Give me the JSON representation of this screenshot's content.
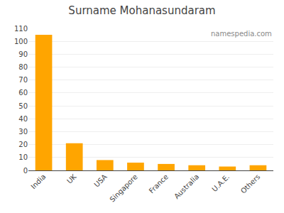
{
  "chart_data": {
    "type": "bar",
    "title": "Surname Mohanasundaram",
    "categories": [
      "India",
      "UK",
      "USA",
      "Singapore",
      "France",
      "Australia",
      "U.A.E.",
      "Others"
    ],
    "values": [
      105,
      21,
      8,
      6,
      5,
      4,
      3,
      4
    ],
    "color": "#FFA500",
    "ylim": [
      0,
      110
    ],
    "yticks": [
      0,
      10,
      20,
      30,
      40,
      50,
      60,
      70,
      80,
      90,
      100,
      110
    ],
    "grid": true,
    "annotations": [
      "namespedia.com"
    ]
  }
}
